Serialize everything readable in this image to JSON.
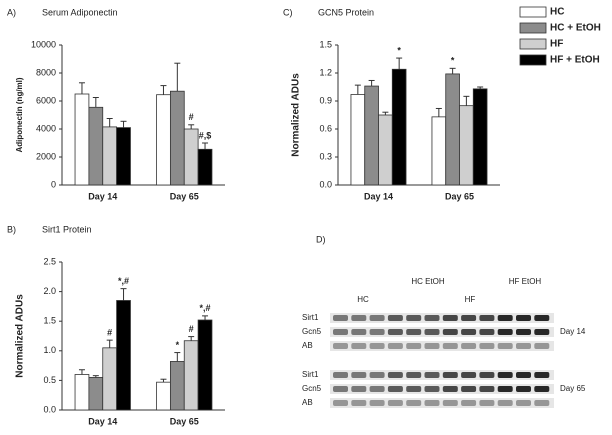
{
  "chart_data": [
    {
      "type": "bar",
      "panel": "A)",
      "title": "Serum Adiponectin",
      "ylabel": "Adiponectin (ng/ml)",
      "categories": [
        "Day 14",
        "Day 65"
      ],
      "series": [
        {
          "color": "#ffffff",
          "values": [
            6500,
            6450
          ],
          "errors": [
            800,
            650
          ]
        },
        {
          "color": "#8c8c8c",
          "values": [
            5550,
            6700
          ],
          "errors": [
            700,
            2000
          ]
        },
        {
          "color": "#cfcfcf",
          "values": [
            4150,
            4000
          ],
          "errors": [
            600,
            300
          ],
          "annotations": [
            null,
            "#"
          ]
        },
        {
          "color": "#000000",
          "values": [
            4100,
            2550
          ],
          "errors": [
            450,
            450
          ],
          "annotations": [
            null,
            "#,$"
          ]
        }
      ],
      "ylim": [
        0,
        10000
      ],
      "yticks": [
        0,
        2000,
        4000,
        6000,
        8000,
        10000
      ]
    },
    {
      "type": "bar",
      "panel": "B)",
      "title": "Sirt1 Protein",
      "ylabel": "Normalized ADUs",
      "categories": [
        "Day 14",
        "Day 65"
      ],
      "series": [
        {
          "color": "#ffffff",
          "values": [
            0.6,
            0.47
          ],
          "errors": [
            0.08,
            0.05
          ]
        },
        {
          "color": "#8c8c8c",
          "values": [
            0.55,
            0.82
          ],
          "errors": [
            0.03,
            0.15
          ],
          "annotations": [
            null,
            "*"
          ]
        },
        {
          "color": "#cfcfcf",
          "values": [
            1.05,
            1.17
          ],
          "errors": [
            0.13,
            0.07
          ],
          "annotations": [
            "#",
            "#"
          ]
        },
        {
          "color": "#000000",
          "values": [
            1.85,
            1.52
          ],
          "errors": [
            0.2,
            0.07
          ],
          "annotations": [
            "*,#",
            "*,#"
          ]
        }
      ],
      "ylim": [
        0,
        2.5
      ],
      "yticks": [
        {
          "value": 0,
          "label": "0.0"
        },
        0.5,
        {
          "value": 1,
          "label": "1.0"
        },
        1.5,
        {
          "value": 2,
          "label": "2.0"
        },
        2.5
      ]
    },
    {
      "type": "bar",
      "panel": "C)",
      "title": "GCN5 Protein",
      "ylabel": "Normalized ADUs",
      "categories": [
        "Day 14",
        "Day 65"
      ],
      "series": [
        {
          "name": "HC",
          "color": "#ffffff",
          "values": [
            0.97,
            0.73
          ],
          "errors": [
            0.1,
            0.09
          ]
        },
        {
          "name": "HC + EtOH",
          "color": "#8c8c8c",
          "values": [
            1.06,
            1.19
          ],
          "errors": [
            0.06,
            0.06
          ],
          "annotations": [
            null,
            "*"
          ]
        },
        {
          "name": "HF",
          "color": "#cfcfcf",
          "values": [
            0.75,
            0.85
          ],
          "errors": [
            0.03,
            0.1
          ]
        },
        {
          "name": "HF + EtOH",
          "color": "#000000",
          "values": [
            1.24,
            1.03
          ],
          "errors": [
            0.12,
            0.02
          ],
          "annotations": [
            "*",
            null
          ]
        }
      ],
      "ylim": [
        0,
        1.5
      ],
      "yticks": [
        {
          "value": 0,
          "label": "0.0"
        },
        0.3,
        0.6,
        0.9,
        1.2,
        1.5
      ],
      "legend": "outside right"
    }
  ],
  "blot": {
    "panel": "D)",
    "groups": [
      "HC EtOH",
      "HF EtOH",
      "HC",
      "HF"
    ],
    "blocks": [
      {
        "day": "Day 14",
        "rows": [
          "Sirt1",
          "Gcn5",
          "AB"
        ]
      },
      {
        "day": "Day 65",
        "rows": [
          "Sirt1",
          "Gcn5",
          "AB"
        ]
      }
    ]
  }
}
